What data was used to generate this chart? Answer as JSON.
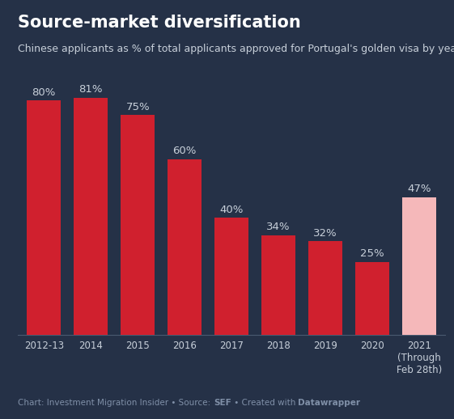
{
  "categories": [
    "2012-13",
    "2014",
    "2015",
    "2016",
    "2017",
    "2018",
    "2019",
    "2020",
    "2021\n(Through\nFeb 28th)"
  ],
  "values": [
    80,
    81,
    75,
    60,
    40,
    34,
    32,
    25,
    47
  ],
  "bar_colors": [
    "#d0202e",
    "#d0202e",
    "#d0202e",
    "#d0202e",
    "#d0202e",
    "#d0202e",
    "#d0202e",
    "#d0202e",
    "#f5b8ba"
  ],
  "title": "Source-market diversification",
  "subtitle": "Chinese applicants as % of total applicants approved for Portugal's golden visa by year",
  "background_color": "#253147",
  "title_color": "#ffffff",
  "subtitle_color": "#c8d0da",
  "label_color": "#c8d0da",
  "footer_color": "#8090a8",
  "bar_label_color": "#c8d0da",
  "ylim": [
    0,
    90
  ],
  "title_fontsize": 15,
  "subtitle_fontsize": 9,
  "bar_label_fontsize": 9.5,
  "xlabel_fontsize": 8.5,
  "footer_fontsize": 7.5
}
